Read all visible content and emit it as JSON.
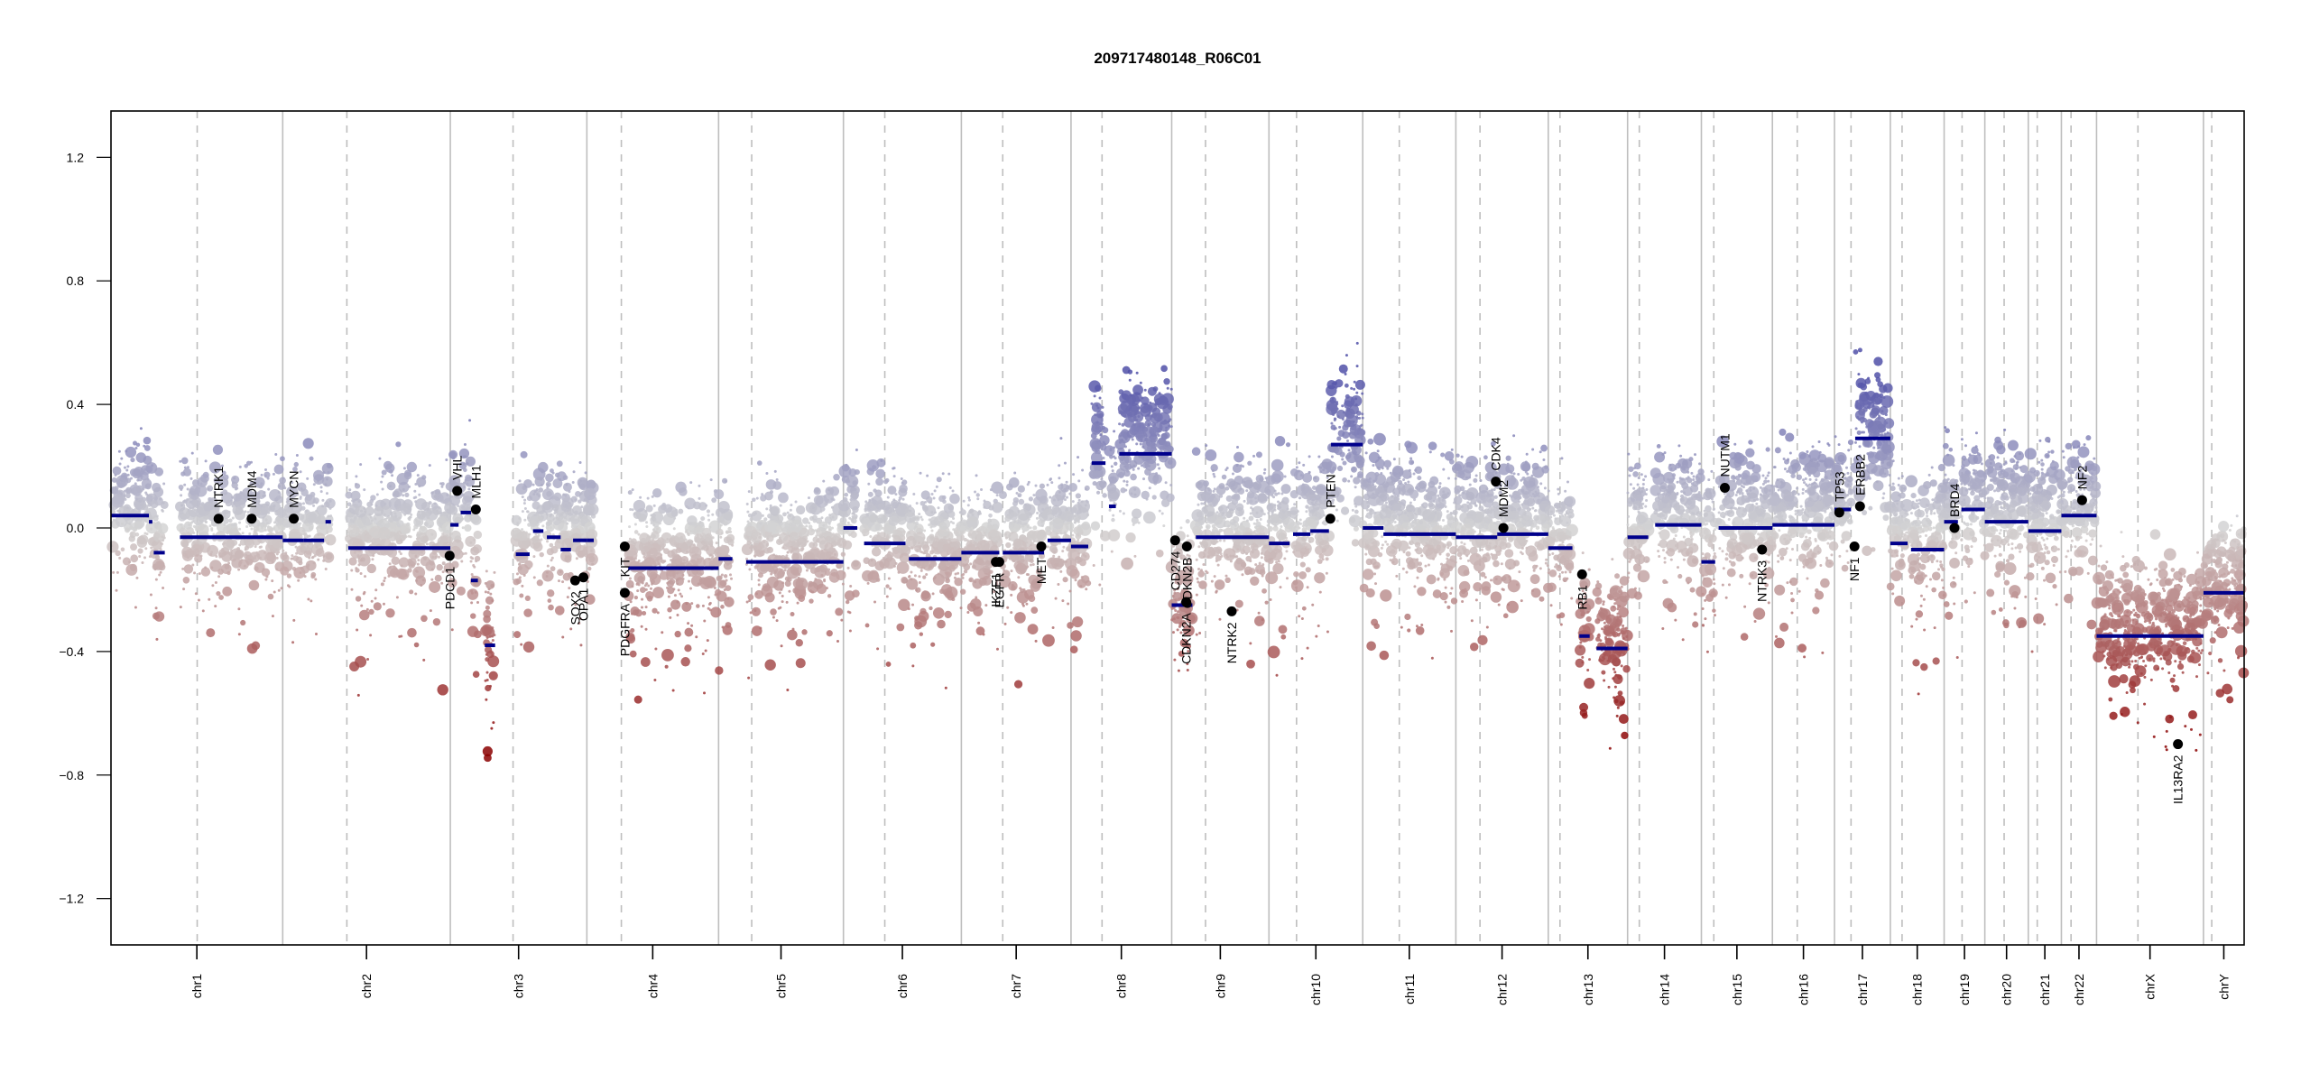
{
  "chart_data": {
    "type": "scatter",
    "title": "209717480148_R06C01",
    "xlabel": "",
    "ylabel": "",
    "ylim": [
      -1.35,
      1.35
    ],
    "yticks": [
      -1.2,
      -0.8,
      -0.4,
      0.0,
      0.4,
      0.8,
      1.2
    ],
    "ytick_labels": [
      "−1.2",
      "−0.8",
      "−0.4",
      "0.0",
      "0.4",
      "0.8",
      "1.2"
    ],
    "x_units": "Mb (cumulative genome position)",
    "grid": false,
    "point_color_scale": {
      "high": "#5050a8",
      "mid": "#d3d3d3",
      "low": "#8b0000"
    },
    "segment_color": "#00008b",
    "gene_marker_color": "#000000",
    "chromosomes": [
      {
        "name": "chr1",
        "length": 249,
        "centromere": 125
      },
      {
        "name": "chr2",
        "length": 243,
        "centromere": 93
      },
      {
        "name": "chr3",
        "length": 198,
        "centromere": 91
      },
      {
        "name": "chr4",
        "length": 191,
        "centromere": 50
      },
      {
        "name": "chr5",
        "length": 181,
        "centromere": 48
      },
      {
        "name": "chr6",
        "length": 171,
        "centromere": 60
      },
      {
        "name": "chr7",
        "length": 159,
        "centromere": 60
      },
      {
        "name": "chr8",
        "length": 146,
        "centromere": 45
      },
      {
        "name": "chr9",
        "length": 141,
        "centromere": 49
      },
      {
        "name": "chr10",
        "length": 136,
        "centromere": 40
      },
      {
        "name": "chr11",
        "length": 135,
        "centromere": 53
      },
      {
        "name": "chr12",
        "length": 134,
        "centromere": 35
      },
      {
        "name": "chr13",
        "length": 115,
        "centromere": 17
      },
      {
        "name": "chr14",
        "length": 107,
        "centromere": 17
      },
      {
        "name": "chr15",
        "length": 103,
        "centromere": 18
      },
      {
        "name": "chr16",
        "length": 90,
        "centromere": 36
      },
      {
        "name": "chr17",
        "length": 81,
        "centromere": 24
      },
      {
        "name": "chr18",
        "length": 78,
        "centromere": 17
      },
      {
        "name": "chr19",
        "length": 59,
        "centromere": 26
      },
      {
        "name": "chr20",
        "length": 63,
        "centromere": 28
      },
      {
        "name": "chr21",
        "length": 48,
        "centromere": 13
      },
      {
        "name": "chr22",
        "length": 51,
        "centromere": 14
      },
      {
        "name": "chrX",
        "length": 155,
        "centromere": 60
      },
      {
        "name": "chrY",
        "length": 59,
        "centromere": 12
      }
    ],
    "segments": [
      {
        "chr": "chr1",
        "start": 0,
        "end": 55,
        "mean": 0.04
      },
      {
        "chr": "chr1",
        "start": 55,
        "end": 60,
        "mean": 0.02
      },
      {
        "chr": "chr1",
        "start": 62,
        "end": 78,
        "mean": -0.08
      },
      {
        "chr": "chr1",
        "start": 100,
        "end": 249,
        "mean": -0.03
      },
      {
        "chr": "chr1",
        "start": 0,
        "end": 0,
        "mean": 0.0
      },
      {
        "chr": "chr2",
        "start": 0,
        "end": 30,
        "mean": -0.04
      },
      {
        "chr": "chr2",
        "start": 30,
        "end": 60,
        "mean": -0.04
      },
      {
        "chr": "chr2",
        "start": 62,
        "end": 70,
        "mean": 0.02
      },
      {
        "chr": "chr2",
        "start": 95,
        "end": 243,
        "mean": -0.065
      },
      {
        "chr": "chr3",
        "start": 0,
        "end": 12,
        "mean": 0.01
      },
      {
        "chr": "chr3",
        "start": 15,
        "end": 30,
        "mean": 0.05
      },
      {
        "chr": "chr3",
        "start": 30,
        "end": 40,
        "mean": -0.17
      },
      {
        "chr": "chr3",
        "start": 50,
        "end": 65,
        "mean": -0.38
      },
      {
        "chr": "chr3",
        "start": 95,
        "end": 115,
        "mean": -0.085
      },
      {
        "chr": "chr3",
        "start": 120,
        "end": 135,
        "mean": -0.01
      },
      {
        "chr": "chr3",
        "start": 140,
        "end": 160,
        "mean": -0.03
      },
      {
        "chr": "chr3",
        "start": 160,
        "end": 175,
        "mean": -0.07
      },
      {
        "chr": "chr3",
        "start": 178,
        "end": 198,
        "mean": -0.04
      },
      {
        "chr": "chr4",
        "start": 0,
        "end": 10,
        "mean": -0.04
      },
      {
        "chr": "chr4",
        "start": 60,
        "end": 191,
        "mean": -0.13
      },
      {
        "chr": "chr5",
        "start": 0,
        "end": 20,
        "mean": -0.1
      },
      {
        "chr": "chr5",
        "start": 40,
        "end": 181,
        "mean": -0.11
      },
      {
        "chr": "chr6",
        "start": 0,
        "end": 20,
        "mean": 0.0
      },
      {
        "chr": "chr6",
        "start": 30,
        "end": 90,
        "mean": -0.05
      },
      {
        "chr": "chr6",
        "start": 95,
        "end": 171,
        "mean": -0.1
      },
      {
        "chr": "chr7",
        "start": 0,
        "end": 55,
        "mean": -0.08
      },
      {
        "chr": "chr7",
        "start": 60,
        "end": 120,
        "mean": -0.08
      },
      {
        "chr": "chr7",
        "start": 125,
        "end": 159,
        "mean": -0.04
      },
      {
        "chr": "chr8",
        "start": 0,
        "end": 25,
        "mean": -0.06
      },
      {
        "chr": "chr8",
        "start": 30,
        "end": 50,
        "mean": 0.21
      },
      {
        "chr": "chr8",
        "start": 55,
        "end": 65,
        "mean": 0.07
      },
      {
        "chr": "chr8",
        "start": 70,
        "end": 146,
        "mean": 0.24
      },
      {
        "chr": "chr9",
        "start": 0,
        "end": 30,
        "mean": -0.25
      },
      {
        "chr": "chr9",
        "start": 35,
        "end": 141,
        "mean": -0.03
      },
      {
        "chr": "chr10",
        "start": 0,
        "end": 30,
        "mean": -0.05
      },
      {
        "chr": "chr10",
        "start": 35,
        "end": 60,
        "mean": -0.02
      },
      {
        "chr": "chr10",
        "start": 60,
        "end": 87,
        "mean": -0.01
      },
      {
        "chr": "chr10",
        "start": 90,
        "end": 136,
        "mean": 0.27
      },
      {
        "chr": "chr11",
        "start": 0,
        "end": 30,
        "mean": 0.0
      },
      {
        "chr": "chr11",
        "start": 30,
        "end": 135,
        "mean": -0.02
      },
      {
        "chr": "chr12",
        "start": 0,
        "end": 60,
        "mean": -0.03
      },
      {
        "chr": "chr12",
        "start": 60,
        "end": 134,
        "mean": -0.02
      },
      {
        "chr": "chr13",
        "start": 0,
        "end": 35,
        "mean": -0.065
      },
      {
        "chr": "chr13",
        "start": 45,
        "end": 60,
        "mean": -0.35
      },
      {
        "chr": "chr13",
        "start": 70,
        "end": 115,
        "mean": -0.39
      },
      {
        "chr": "chr14",
        "start": 0,
        "end": 30,
        "mean": -0.03
      },
      {
        "chr": "chr14",
        "start": 40,
        "end": 107,
        "mean": 0.01
      },
      {
        "chr": "chr15",
        "start": 0,
        "end": 20,
        "mean": -0.11
      },
      {
        "chr": "chr15",
        "start": 25,
        "end": 103,
        "mean": 0.0
      },
      {
        "chr": "chr16",
        "start": 0,
        "end": 90,
        "mean": 0.01
      },
      {
        "chr": "chr17",
        "start": 0,
        "end": 24,
        "mean": 0.06
      },
      {
        "chr": "chr17",
        "start": 30,
        "end": 81,
        "mean": 0.29
      },
      {
        "chr": "chr18",
        "start": 0,
        "end": 25,
        "mean": -0.05
      },
      {
        "chr": "chr18",
        "start": 30,
        "end": 78,
        "mean": -0.07
      },
      {
        "chr": "chr19",
        "start": 0,
        "end": 20,
        "mean": 0.02
      },
      {
        "chr": "chr19",
        "start": 25,
        "end": 59,
        "mean": 0.06
      },
      {
        "chr": "chr20",
        "start": 0,
        "end": 63,
        "mean": 0.02
      },
      {
        "chr": "chr21",
        "start": 0,
        "end": 48,
        "mean": -0.01
      },
      {
        "chr": "chr22",
        "start": 0,
        "end": 51,
        "mean": 0.04
      },
      {
        "chr": "chrX",
        "start": 0,
        "end": 155,
        "mean": -0.35
      },
      {
        "chr": "chrY",
        "start": 0,
        "end": 59,
        "mean": -0.21
      }
    ],
    "genes": [
      {
        "name": "NTRK1",
        "chr": "chr1",
        "pos": 156,
        "value": 0.03,
        "label_side": "above"
      },
      {
        "name": "MDM4",
        "chr": "chr1",
        "pos": 204,
        "value": 0.03,
        "label_side": "above"
      },
      {
        "name": "MYCN",
        "chr": "chr2",
        "pos": 16,
        "value": 0.03,
        "label_side": "above"
      },
      {
        "name": "PDCD1",
        "chr": "chr2",
        "pos": 242,
        "value": -0.09,
        "label_side": "below"
      },
      {
        "name": "VHL",
        "chr": "chr3",
        "pos": 10,
        "value": 0.12,
        "label_side": "above"
      },
      {
        "name": "MLH1",
        "chr": "chr3",
        "pos": 37,
        "value": 0.06,
        "label_side": "above"
      },
      {
        "name": "SOX2",
        "chr": "chr3",
        "pos": 181,
        "value": -0.17,
        "label_side": "below"
      },
      {
        "name": "OPA1",
        "chr": "chr3",
        "pos": 193,
        "value": -0.16,
        "label_side": "below"
      },
      {
        "name": "KIT",
        "chr": "chr4",
        "pos": 55,
        "value": -0.06,
        "label_side": "below"
      },
      {
        "name": "PDGFRA",
        "chr": "chr4",
        "pos": 55,
        "value": -0.21,
        "label_side": "below"
      },
      {
        "name": "EGFR",
        "chr": "chr7",
        "pos": 55,
        "value": -0.11,
        "label_side": "below"
      },
      {
        "name": "IKZF1",
        "chr": "chr7",
        "pos": 50,
        "value": -0.11,
        "label_side": "below"
      },
      {
        "name": "MET",
        "chr": "chr7",
        "pos": 116,
        "value": -0.06,
        "label_side": "below"
      },
      {
        "name": "CD274",
        "chr": "chr9",
        "pos": 5,
        "value": -0.04,
        "label_side": "below"
      },
      {
        "name": "CDKN2A",
        "chr": "chr9",
        "pos": 21,
        "value": -0.24,
        "label_side": "below"
      },
      {
        "name": "CDKN2B",
        "chr": "chr9",
        "pos": 22,
        "value": -0.06,
        "label_side": "below"
      },
      {
        "name": "NTRK2",
        "chr": "chr9",
        "pos": 87,
        "value": -0.27,
        "label_side": "below"
      },
      {
        "name": "PTEN",
        "chr": "chr10",
        "pos": 89,
        "value": 0.03,
        "label_side": "above"
      },
      {
        "name": "MDM2",
        "chr": "chr12",
        "pos": 69,
        "value": 0.0,
        "label_side": "above"
      },
      {
        "name": "CDK4",
        "chr": "chr12",
        "pos": 58,
        "value": 0.15,
        "label_side": "above"
      },
      {
        "name": "RB1",
        "chr": "chr13",
        "pos": 49,
        "value": -0.15,
        "label_side": "below"
      },
      {
        "name": "NUTM1",
        "chr": "chr15",
        "pos": 34,
        "value": 0.13,
        "label_side": "above"
      },
      {
        "name": "NTRK3",
        "chr": "chr15",
        "pos": 88,
        "value": -0.07,
        "label_side": "below"
      },
      {
        "name": "TP53",
        "chr": "chr17",
        "pos": 7,
        "value": 0.05,
        "label_side": "above"
      },
      {
        "name": "NF1",
        "chr": "chr17",
        "pos": 29,
        "value": -0.06,
        "label_side": "below"
      },
      {
        "name": "ERBB2",
        "chr": "chr17",
        "pos": 37,
        "value": 0.07,
        "label_side": "above"
      },
      {
        "name": "BRD4",
        "chr": "chr19",
        "pos": 15,
        "value": 0.0,
        "label_side": "above"
      },
      {
        "name": "NF2",
        "chr": "chr22",
        "pos": 30,
        "value": 0.09,
        "label_side": "above"
      },
      {
        "name": "IL13RA2",
        "chrX": true,
        "chr": "chrX",
        "pos": 118,
        "value": -0.7,
        "label_side": "below"
      }
    ]
  }
}
